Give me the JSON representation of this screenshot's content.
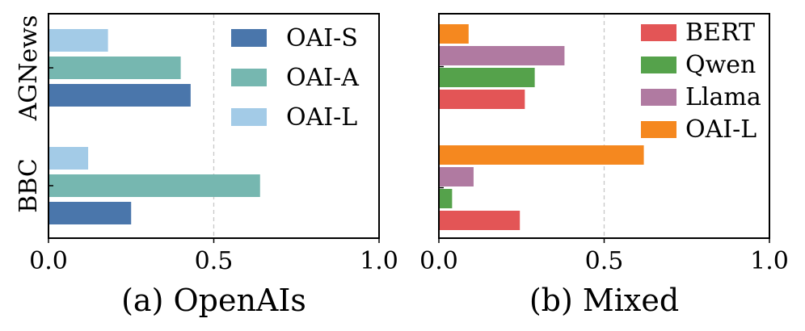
{
  "chart_data": [
    {
      "type": "bar",
      "orientation": "horizontal",
      "title": "(a) OpenAIs",
      "categories": [
        "AGNews",
        "BBC"
      ],
      "xlim": [
        0,
        1.0
      ],
      "xticks": [
        "0.0",
        "0.5",
        "1.0"
      ],
      "reference_line": 0.5,
      "legend_position": "top-right",
      "series": [
        {
          "name": "OAI-S",
          "color": "#4a76ab",
          "values": [
            0.43,
            0.25
          ]
        },
        {
          "name": "OAI-A",
          "color": "#76b7b0",
          "values": [
            0.4,
            0.64
          ]
        },
        {
          "name": "OAI-L",
          "color": "#a3cbe7",
          "values": [
            0.18,
            0.12
          ]
        }
      ]
    },
    {
      "type": "bar",
      "orientation": "horizontal",
      "title": "(b) Mixed",
      "categories": [
        "AGNews",
        "BBC"
      ],
      "xlim": [
        0,
        1.0
      ],
      "xticks": [
        "0.0",
        "0.5",
        "1.0"
      ],
      "reference_line": 0.5,
      "legend_position": "top-right",
      "series": [
        {
          "name": "BERT",
          "color": "#e35556",
          "values": [
            0.26,
            0.245
          ]
        },
        {
          "name": "Qwen",
          "color": "#55a24b",
          "values": [
            0.29,
            0.04
          ]
        },
        {
          "name": "Llama",
          "color": "#b07aa1",
          "values": [
            0.38,
            0.105
          ]
        },
        {
          "name": "OAI-L",
          "color": "#f5881f",
          "values": [
            0.09,
            0.62
          ]
        }
      ]
    }
  ]
}
